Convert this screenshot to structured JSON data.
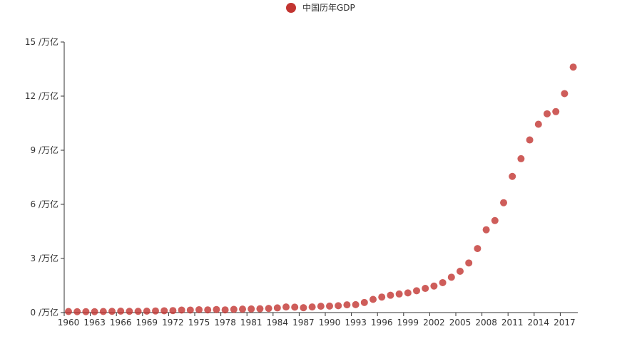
{
  "chart_data": {
    "type": "scatter",
    "legend": {
      "position": "top-center"
    },
    "series": [
      {
        "name": "中国历年GDP",
        "color": "#c23531",
        "x": [
          1960,
          1961,
          1962,
          1963,
          1964,
          1965,
          1966,
          1967,
          1968,
          1969,
          1970,
          1971,
          1972,
          1973,
          1974,
          1975,
          1976,
          1977,
          1978,
          1979,
          1980,
          1981,
          1982,
          1983,
          1984,
          1985,
          1986,
          1987,
          1988,
          1989,
          1990,
          1991,
          1992,
          1993,
          1994,
          1995,
          1996,
          1997,
          1998,
          1999,
          2000,
          2001,
          2002,
          2003,
          2004,
          2005,
          2006,
          2007,
          2008,
          2009,
          2010,
          2011,
          2012,
          2013,
          2014,
          2015,
          2016,
          2017,
          2018
        ],
        "values": [
          0.06,
          0.05,
          0.05,
          0.05,
          0.06,
          0.07,
          0.08,
          0.07,
          0.07,
          0.08,
          0.09,
          0.1,
          0.11,
          0.14,
          0.14,
          0.16,
          0.15,
          0.17,
          0.15,
          0.18,
          0.19,
          0.2,
          0.21,
          0.23,
          0.26,
          0.31,
          0.3,
          0.27,
          0.31,
          0.35,
          0.36,
          0.38,
          0.43,
          0.44,
          0.56,
          0.73,
          0.86,
          0.96,
          1.03,
          1.09,
          1.21,
          1.34,
          1.47,
          1.66,
          1.96,
          2.29,
          2.75,
          3.55,
          4.59,
          5.1,
          6.09,
          7.55,
          8.53,
          9.57,
          10.44,
          11.02,
          11.14,
          12.14,
          13.61
        ]
      }
    ],
    "x_tick_labels": [
      "1960",
      "1963",
      "1966",
      "1969",
      "1972",
      "1975",
      "1978",
      "1981",
      "1984",
      "1987",
      "1990",
      "1993",
      "1996",
      "1999",
      "2002",
      "2005",
      "2008",
      "2011",
      "2014",
      "2017"
    ],
    "y_ticks": [
      0,
      3,
      6,
      9,
      12,
      15
    ],
    "y_tick_labels": [
      "0 /万亿",
      "3 /万亿",
      "6 /万亿",
      "9 /万亿",
      "12 /万亿",
      "15 /万亿"
    ],
    "ylim": [
      0,
      15
    ],
    "grid": false
  }
}
